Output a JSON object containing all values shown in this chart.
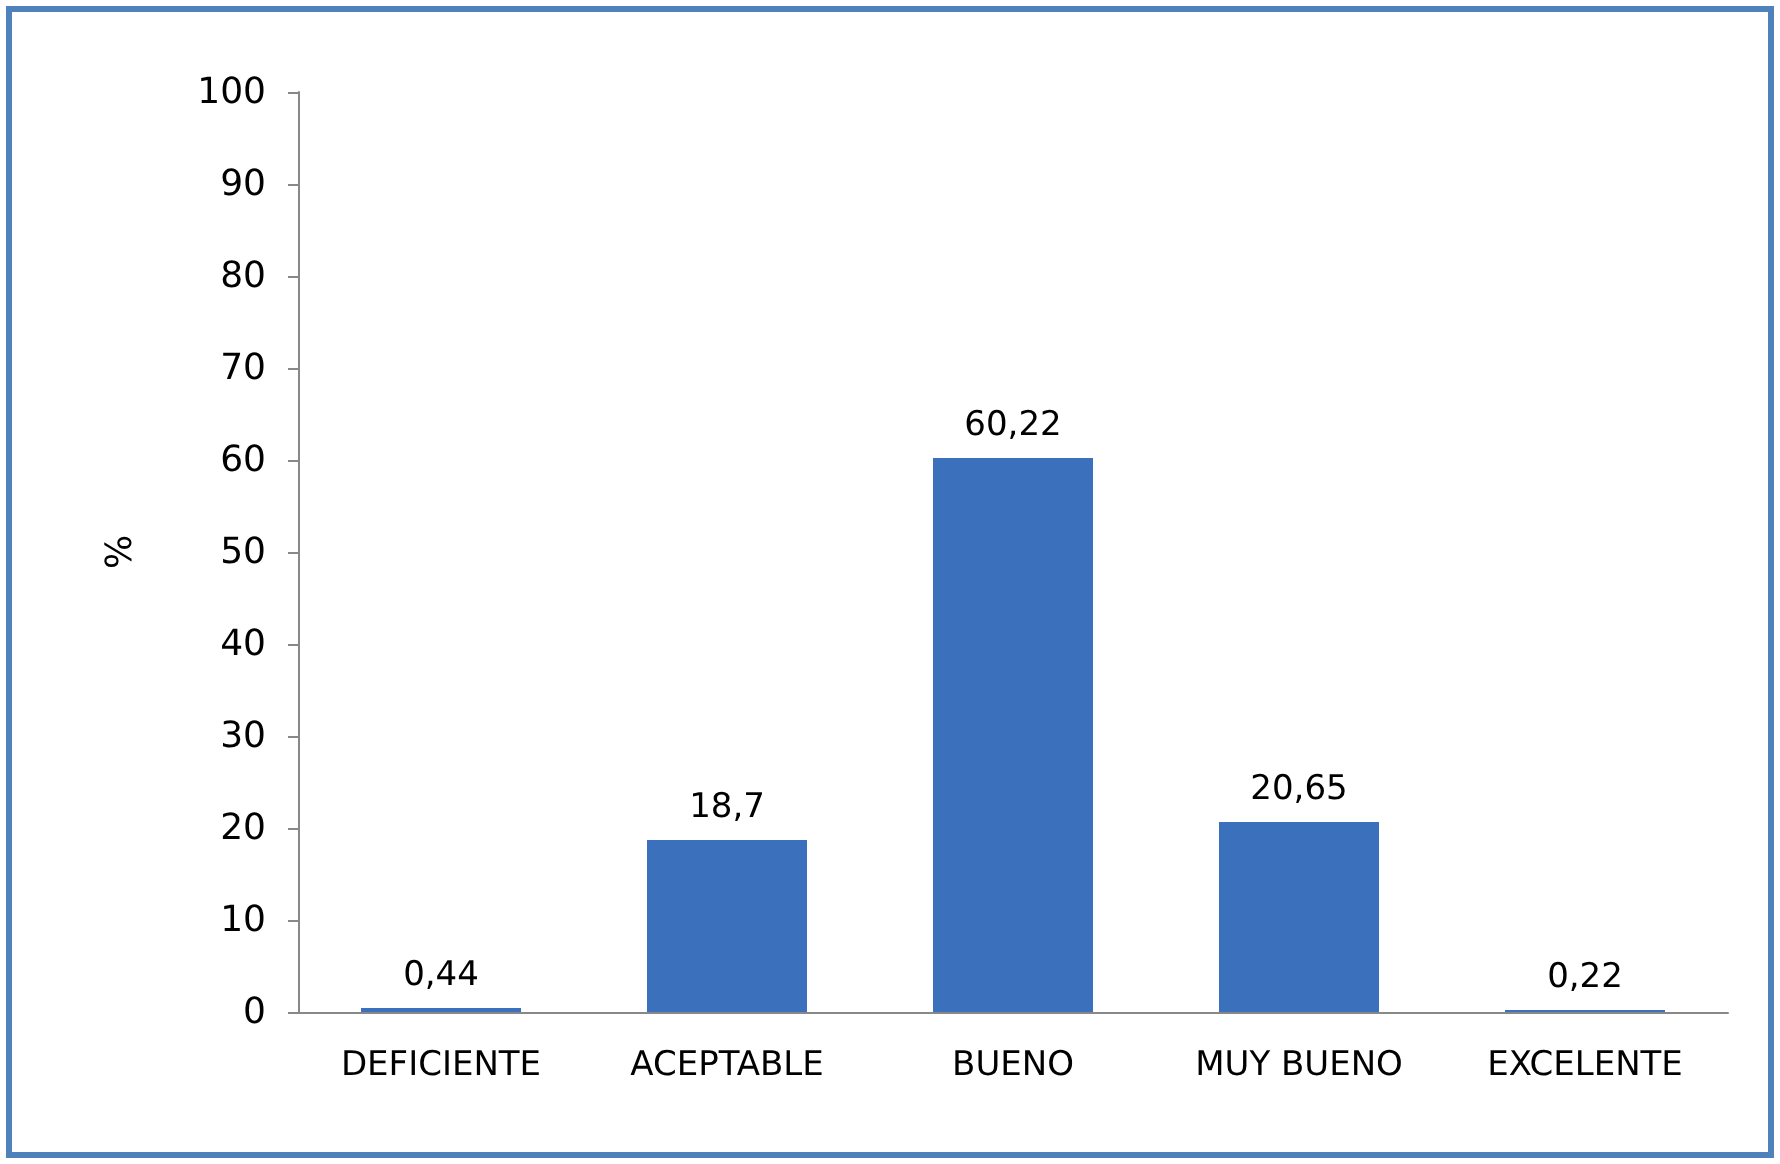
{
  "chart_data": {
    "type": "bar",
    "ylabel": "%",
    "categories": [
      "DEFICIENTE",
      "ACEPTABLE",
      "BUENO",
      "MUY BUENO",
      "EXCELENTE"
    ],
    "values": [
      0.44,
      18.7,
      60.22,
      20.65,
      0.22
    ],
    "value_labels": [
      "0,44",
      "18,7",
      "60,22",
      "20,65",
      "0,22"
    ],
    "color": "#3b70bd",
    "ylim": [
      0,
      100
    ],
    "yticks": [
      0,
      10,
      20,
      30,
      40,
      50,
      60,
      70,
      80,
      90,
      100
    ],
    "grid": false
  }
}
